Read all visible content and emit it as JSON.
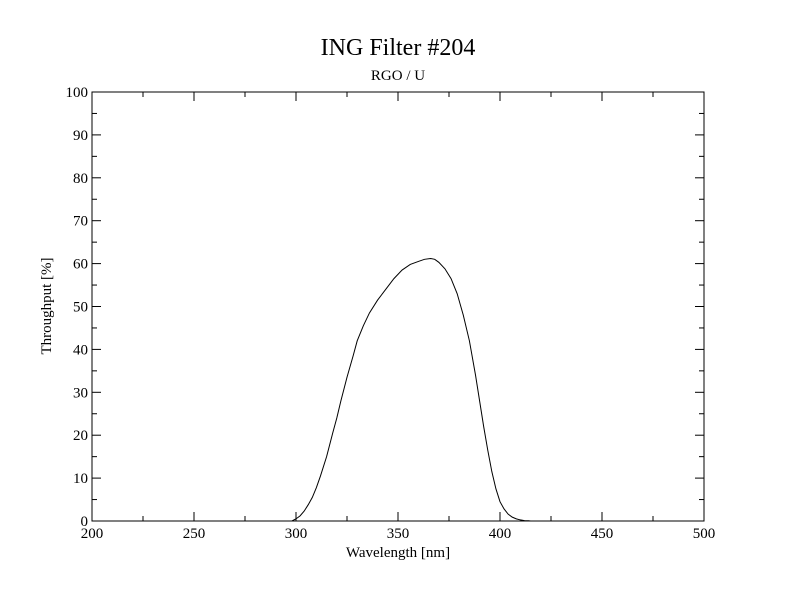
{
  "chart_data": {
    "type": "line",
    "title": "ING Filter #204",
    "subtitle": "RGO / U",
    "xlabel": "Wavelength [nm]",
    "ylabel": "Throughput [%]",
    "xlim": [
      200,
      500
    ],
    "ylim": [
      0,
      100
    ],
    "x_ticks": [
      "200",
      "250",
      "300",
      "350",
      "400",
      "450",
      "500"
    ],
    "y_ticks": [
      "0",
      "10",
      "20",
      "30",
      "40",
      "50",
      "60",
      "70",
      "80",
      "90",
      "100"
    ],
    "grid": false,
    "series": [
      {
        "x": [
          200,
          298,
          300,
          302,
          304,
          306,
          308,
          310,
          312,
          315,
          318,
          320,
          322,
          325,
          328,
          330,
          333,
          336,
          340,
          344,
          348,
          352,
          356,
          360,
          363,
          366,
          368,
          370,
          373,
          376,
          379,
          382,
          385,
          388,
          390,
          392,
          394,
          396,
          398,
          400,
          402,
          404,
          406,
          408,
          410,
          412,
          414,
          415,
          500
        ],
        "y": [
          0,
          0,
          0.5,
          1.2,
          2.3,
          3.8,
          5.5,
          7.8,
          10.5,
          15,
          20.5,
          24,
          28,
          33.5,
          38.5,
          42,
          45.5,
          48.5,
          51.5,
          54,
          56.5,
          58.5,
          59.8,
          60.5,
          61,
          61.2,
          61,
          60.3,
          58.8,
          56.5,
          53,
          48,
          42,
          34,
          28,
          22,
          16.5,
          11.5,
          7.5,
          4.5,
          2.8,
          1.6,
          0.9,
          0.5,
          0.25,
          0.1,
          0.05,
          0,
          0
        ]
      }
    ]
  }
}
